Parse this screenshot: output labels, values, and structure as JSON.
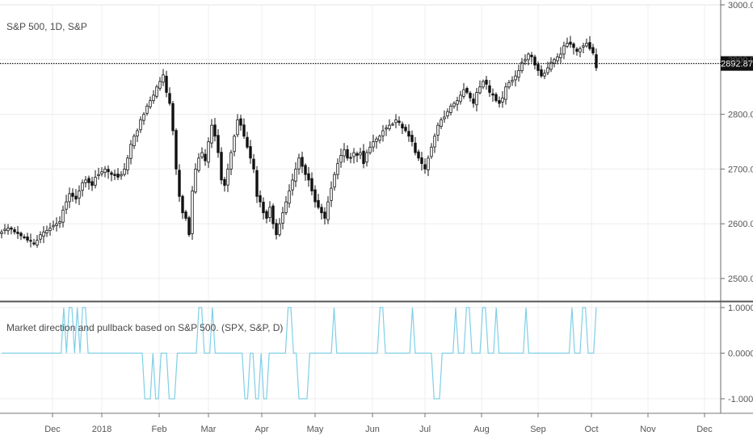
{
  "chart_data": [
    {
      "type": "candlestick",
      "title": "S&P 500, 1D, S&P",
      "ylim": [
        2475,
        3010
      ],
      "y_ticks": [
        {
          "value": 2500,
          "label": "2500.00"
        },
        {
          "value": 2600,
          "label": "2600.00"
        },
        {
          "value": 2700,
          "label": "2700.00"
        },
        {
          "value": 2800,
          "label": "2800.00"
        },
        {
          "value": 2900,
          "label": "2900.00"
        },
        {
          "value": 3000,
          "label": "3000.00"
        }
      ],
      "price_line": {
        "value": 2892.87,
        "label": "2892.87"
      },
      "x_ticks": [
        "Dec",
        "2018",
        "Feb",
        "Mar",
        "Apr",
        "May",
        "Jun",
        "Jul",
        "Aug",
        "Sep",
        "Oct",
        "Nov",
        "Dec"
      ],
      "close_series": [
        2585,
        2590,
        2592,
        2590,
        2585,
        2582,
        2578,
        2575,
        2570,
        2568,
        2563,
        2570,
        2580,
        2585,
        2588,
        2592,
        2597,
        2600,
        2604,
        2625,
        2640,
        2655,
        2650,
        2645,
        2660,
        2675,
        2680,
        2675,
        2670,
        2685,
        2690,
        2695,
        2700,
        2695,
        2690,
        2688,
        2685,
        2690,
        2700,
        2720,
        2745,
        2760,
        2770,
        2790,
        2800,
        2815,
        2825,
        2835,
        2850,
        2860,
        2872,
        2840,
        2820,
        2770,
        2700,
        2650,
        2620,
        2610,
        2580,
        2660,
        2700,
        2720,
        2730,
        2715,
        2750,
        2780,
        2760,
        2730,
        2680,
        2670,
        2700,
        2730,
        2760,
        2790,
        2780,
        2760,
        2740,
        2720,
        2700,
        2650,
        2640,
        2620,
        2610,
        2630,
        2600,
        2580,
        2600,
        2620,
        2640,
        2660,
        2680,
        2700,
        2720,
        2705,
        2690,
        2680,
        2660,
        2640,
        2630,
        2620,
        2610,
        2640,
        2665,
        2690,
        2710,
        2725,
        2735,
        2720,
        2720,
        2730,
        2725,
        2730,
        2710,
        2730,
        2740,
        2750,
        2755,
        2760,
        2770,
        2775,
        2780,
        2782,
        2790,
        2785,
        2775,
        2770,
        2760,
        2750,
        2730,
        2720,
        2710,
        2700,
        2720,
        2740,
        2760,
        2780,
        2790,
        2795,
        2805,
        2815,
        2820,
        2825,
        2835,
        2845,
        2840,
        2830,
        2820,
        2840,
        2850,
        2860,
        2855,
        2840,
        2835,
        2825,
        2820,
        2830,
        2850,
        2858,
        2862,
        2870,
        2880,
        2895,
        2900,
        2910,
        2905,
        2890,
        2880,
        2870,
        2875,
        2885,
        2895,
        2900,
        2905,
        2910,
        2925,
        2930,
        2928,
        2922,
        2915,
        2920,
        2925,
        2930,
        2920,
        2912,
        2885
      ]
    },
    {
      "type": "line",
      "title": "Market direction and pullback based on S&P 500. (SPX, S&P, D)",
      "ylim": [
        -1.1,
        1.1
      ],
      "y_ticks": [
        {
          "value": 1,
          "label": "1.0000"
        },
        {
          "value": 0,
          "label": "0.0000"
        },
        {
          "value": -1,
          "label": "-1.0000"
        }
      ],
      "last_value_label": "1.0000",
      "color": "#7fcfe6",
      "values": [
        0,
        0,
        0,
        0,
        0,
        0,
        0,
        0,
        0,
        0,
        0,
        0,
        0,
        0,
        0,
        0,
        0,
        0,
        0,
        0,
        0,
        0,
        0,
        1,
        0,
        1,
        1,
        0,
        1,
        0,
        1,
        1,
        0,
        0,
        0,
        0,
        0,
        0,
        0,
        0,
        0,
        0,
        0,
        0,
        0,
        0,
        0,
        0,
        0,
        0,
        0,
        0,
        0,
        -1,
        -1,
        -1,
        0,
        -1,
        -1,
        0,
        0,
        0,
        -1,
        -1,
        -1,
        0,
        0,
        0,
        0,
        0,
        0,
        0,
        0,
        1,
        1,
        0,
        0,
        0,
        1,
        0,
        0,
        0,
        0,
        0,
        0,
        0,
        0,
        0,
        0,
        0,
        -1,
        -1,
        0,
        0,
        -1,
        -1,
        0,
        -1,
        -1,
        0,
        0,
        0,
        0,
        0,
        0,
        0,
        1,
        1,
        0,
        0,
        -1,
        -1,
        -1,
        -1,
        0,
        0,
        0,
        0,
        0,
        0,
        0,
        0,
        0,
        1,
        0,
        0,
        0,
        0,
        0,
        0,
        0,
        0,
        0,
        0,
        0,
        0,
        0,
        0,
        0,
        0,
        1,
        1,
        0,
        0,
        0,
        0,
        0,
        0,
        0,
        0,
        0,
        0,
        1,
        0,
        0,
        0,
        0,
        0,
        0,
        0,
        -1,
        -1,
        -1,
        0,
        0,
        0,
        0,
        0,
        1,
        0,
        0,
        0,
        1,
        1,
        0,
        0,
        0,
        0,
        1,
        1,
        0,
        0,
        0,
        1,
        0,
        0,
        0,
        0,
        0,
        0,
        0,
        0,
        0,
        0,
        1,
        0,
        0,
        0,
        0,
        0,
        0,
        0,
        0,
        0,
        0,
        0,
        0,
        0,
        0,
        0,
        0,
        1,
        0,
        0,
        0,
        1,
        1,
        0,
        0,
        0,
        1
      ]
    }
  ]
}
